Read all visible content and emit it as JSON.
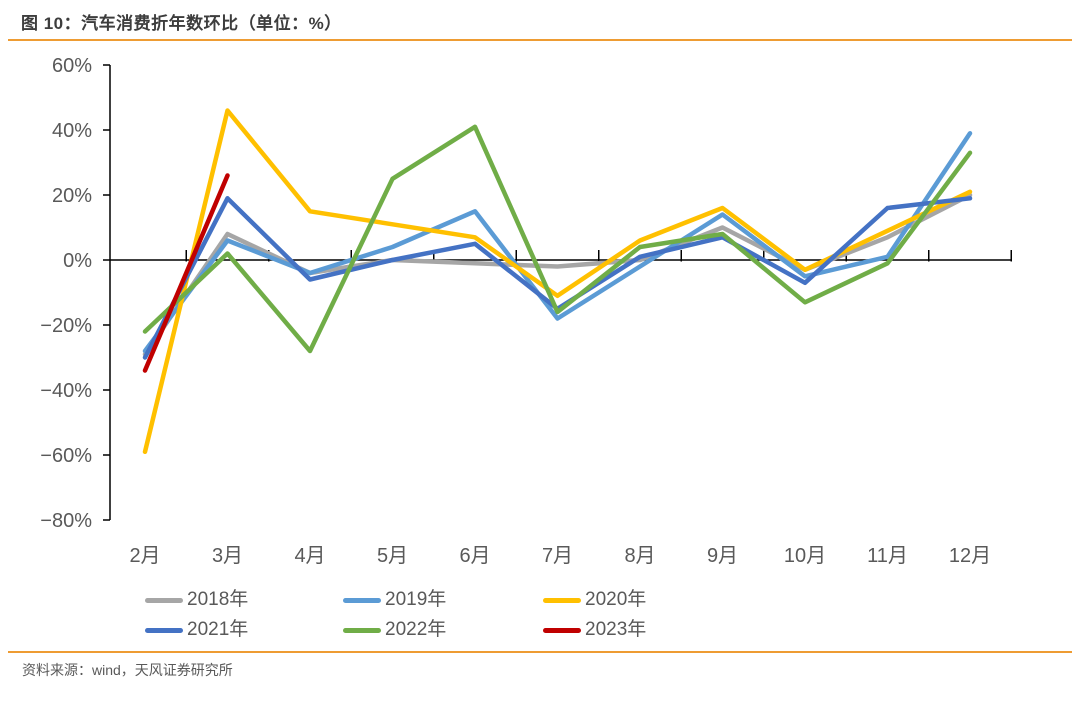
{
  "header": {
    "title": "图 10：汽车消费折年数环比（单位：%）"
  },
  "footer": {
    "source": "资料来源：wind，天风证券研究所"
  },
  "accent": {
    "rule_color": "#EE9C33",
    "axis_color": "#000000",
    "label_color": "#595959"
  },
  "chart_data": {
    "type": "line",
    "title": "汽车消费折年数环比",
    "unit": "%",
    "categories": [
      "2月",
      "3月",
      "4月",
      "5月",
      "6月",
      "7月",
      "8月",
      "9月",
      "10月",
      "11月",
      "12月"
    ],
    "series": [
      {
        "name": "2018年",
        "color": "#A6A6A6",
        "values": [
          -29,
          8,
          -4,
          0,
          -1,
          -2,
          0,
          10,
          -3,
          7,
          20
        ]
      },
      {
        "name": "2019年",
        "color": "#5B9BD5",
        "values": [
          -28,
          6,
          -4,
          4,
          15,
          -18,
          -2,
          14,
          -5,
          1,
          39
        ]
      },
      {
        "name": "2020年",
        "color": "#FFC000",
        "values": [
          -59,
          46,
          15,
          11,
          7,
          -11,
          6,
          16,
          -3,
          9,
          21
        ]
      },
      {
        "name": "2021年",
        "color": "#4472C4",
        "values": [
          -30,
          19,
          -6,
          0,
          5,
          -15,
          1,
          7,
          -7,
          16,
          19
        ]
      },
      {
        "name": "2022年",
        "color": "#70AD47",
        "values": [
          -22,
          2,
          -28,
          25,
          41,
          -16,
          4,
          8,
          -13,
          -1,
          33
        ]
      },
      {
        "name": "2023年",
        "color": "#C00000",
        "values": [
          -34,
          26,
          null,
          null,
          null,
          null,
          null,
          null,
          null,
          null,
          null
        ]
      }
    ],
    "y_axis": {
      "min": -80,
      "max": 60,
      "step": 20,
      "tick_labels": [
        "60%",
        "40%",
        "20%",
        "0%",
        "−20%",
        "−40%",
        "−60%",
        "−80%"
      ]
    },
    "grid": "zero-line-only",
    "legend_position": "bottom"
  }
}
